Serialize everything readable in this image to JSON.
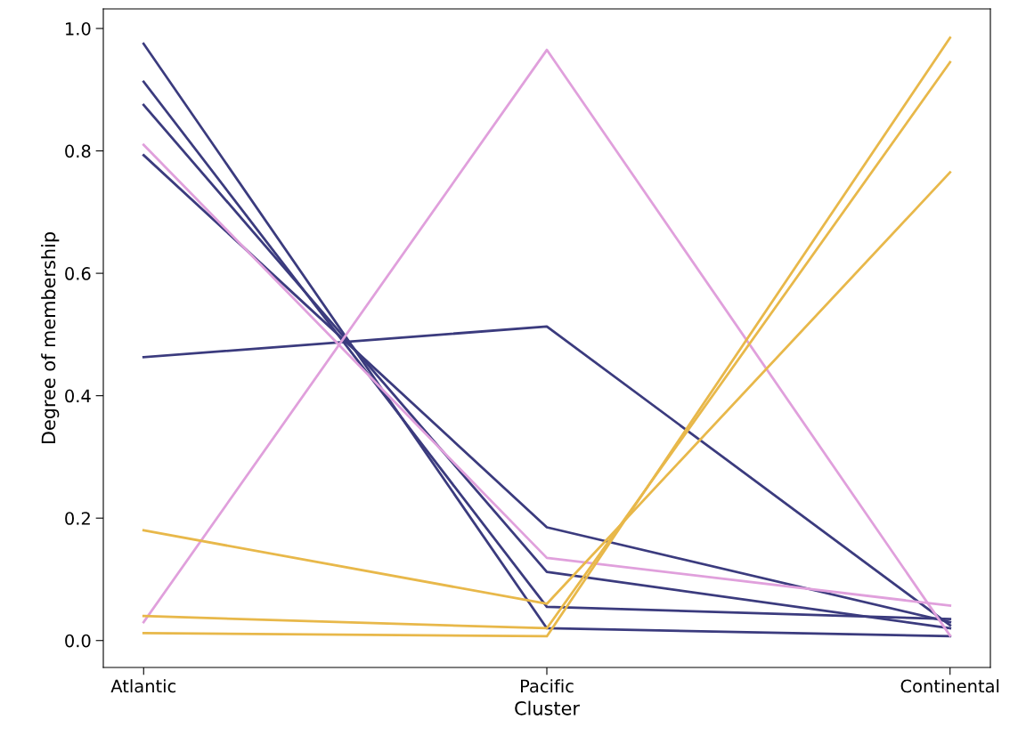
{
  "chart_data": {
    "type": "line",
    "xlabel": "Cluster",
    "ylabel": "Degree of membership",
    "categories": [
      "Atlantic",
      "Pacific",
      "Continental"
    ],
    "series": [
      {
        "color": "#3b3b7e",
        "values": [
          0.975,
          0.02,
          0.007
        ]
      },
      {
        "color": "#3b3b7e",
        "values": [
          0.913,
          0.055,
          0.035
        ]
      },
      {
        "color": "#3b3b7e",
        "values": [
          0.875,
          0.112,
          0.02
        ]
      },
      {
        "color": "#3b3b7e",
        "values": [
          0.793,
          0.185,
          0.03
        ]
      },
      {
        "color": "#3b3b7e",
        "values": [
          0.463,
          0.513,
          0.025
        ]
      },
      {
        "color": "#e0a0dc",
        "values": [
          0.81,
          0.135,
          0.057
        ]
      },
      {
        "color": "#e0a0dc",
        "values": [
          0.03,
          0.965,
          0.008
        ]
      },
      {
        "color": "#e8b84a",
        "values": [
          0.18,
          0.06,
          0.765
        ]
      },
      {
        "color": "#e8b84a",
        "values": [
          0.04,
          0.02,
          0.945
        ]
      },
      {
        "color": "#e8b84a",
        "values": [
          0.012,
          0.007,
          0.985
        ]
      }
    ],
    "ylim": [
      -0.044,
      1.032
    ],
    "yticks": [
      {
        "value": 0,
        "label": "0.0"
      },
      {
        "value": 0.2,
        "label": "0.2"
      },
      {
        "value": 0.4,
        "label": "0.4"
      },
      {
        "value": 0.6,
        "label": "0.6"
      },
      {
        "value": 0.8,
        "label": "0.8"
      },
      {
        "value": 1,
        "label": "1.0"
      }
    ],
    "grid": false
  }
}
